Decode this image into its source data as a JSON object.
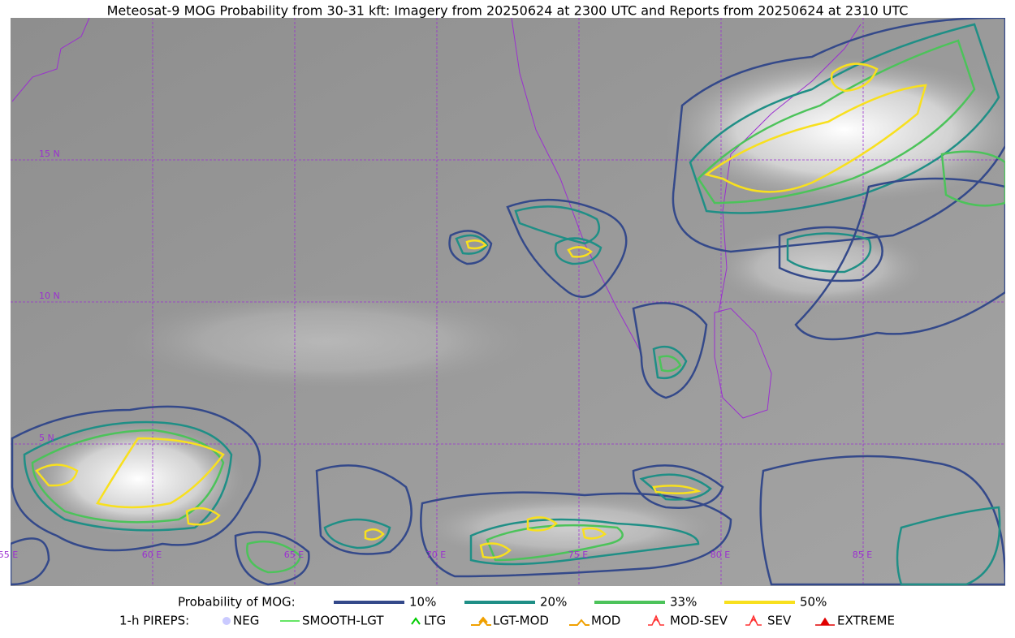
{
  "title": "Meteosat-9 MOG Probability from 30-31 kft: Imagery from 20250624 at 2300 UTC and Reports from 20250624 at 2310 UTC",
  "map": {
    "lat_labels": [
      "15 N",
      "10 N",
      "5 N"
    ],
    "lon_labels": [
      "55 E",
      "60 E",
      "65 E",
      "70 E",
      "75 E",
      "80 E",
      "85 E"
    ]
  },
  "legend": {
    "probability": {
      "label": "Probability of MOG:",
      "levels": [
        {
          "name": "10%",
          "color": "#34498a"
        },
        {
          "name": "20%",
          "color": "#1f8f86"
        },
        {
          "name": "33%",
          "color": "#4cc35a"
        },
        {
          "name": "50%",
          "color": "#f8e01e"
        }
      ]
    },
    "pireps": {
      "label": "1-h PIREPS:",
      "items": [
        {
          "name": "NEG",
          "color": "#b4b4ff"
        },
        {
          "name": "SMOOTH-LGT",
          "color": "#33dd33"
        },
        {
          "name": "LTG",
          "color": "#00cc00"
        },
        {
          "name": "LGT-MOD",
          "color": "#f0a000"
        },
        {
          "name": "MOD",
          "color": "#f0a000"
        },
        {
          "name": "MOD-SEV",
          "color": "#ff3030"
        },
        {
          "name": "SEV",
          "color": "#ff3030"
        },
        {
          "name": "EXTREME",
          "color": "#e00000"
        }
      ]
    }
  }
}
